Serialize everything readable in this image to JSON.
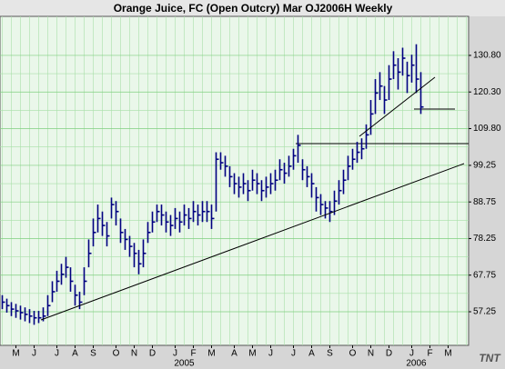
{
  "chart_data": {
    "type": "ohlc",
    "title": "Orange Juice, FC (Open Outcry) Mar OJ2006H Weekly",
    "categories": [
      null,
      null,
      null,
      "M",
      null,
      null,
      null,
      "J",
      null,
      null,
      null,
      null,
      "J",
      null,
      null,
      null,
      "A",
      null,
      null,
      null,
      "S",
      null,
      null,
      null,
      null,
      "O",
      null,
      null,
      null,
      "N",
      null,
      null,
      null,
      "D",
      null,
      null,
      null,
      null,
      "J",
      null,
      null,
      null,
      "F",
      null,
      null,
      null,
      "M",
      null,
      null,
      null,
      null,
      "A",
      null,
      null,
      null,
      "M",
      null,
      null,
      null,
      "J",
      null,
      null,
      null,
      null,
      "J",
      null,
      null,
      null,
      "A",
      null,
      null,
      null,
      "S",
      null,
      null,
      null,
      null,
      "O",
      null,
      null,
      null,
      "N",
      null,
      null,
      null,
      "D",
      null,
      null,
      null,
      null,
      "J",
      null,
      null,
      null,
      "F",
      null,
      null,
      null,
      "M",
      null,
      null,
      null,
      null
    ],
    "year_categories": [
      null,
      null,
      null,
      null,
      null,
      null,
      null,
      null,
      null,
      null,
      null,
      null,
      null,
      null,
      null,
      null,
      null,
      null,
      null,
      null,
      null,
      null,
      null,
      null,
      null,
      null,
      null,
      null,
      null,
      null,
      null,
      null,
      null,
      null,
      null,
      null,
      null,
      null,
      null,
      null,
      "2005",
      null,
      null,
      null,
      null,
      null,
      null,
      null,
      null,
      null,
      null,
      null,
      null,
      null,
      null,
      null,
      null,
      null,
      null,
      null,
      null,
      null,
      null,
      null,
      null,
      null,
      null,
      null,
      null,
      null,
      null,
      null,
      null,
      null,
      null,
      null,
      null,
      null,
      null,
      null,
      null,
      null,
      null,
      null,
      null,
      null,
      null,
      null,
      null,
      null,
      null,
      "2006",
      null,
      null,
      null,
      null,
      null,
      null,
      null,
      null,
      null,
      null,
      null
    ],
    "high": [
      62,
      61,
      60,
      59.5,
      59,
      58.5,
      58,
      57.5,
      57.5,
      58.5,
      62,
      66,
      69,
      71,
      73,
      70,
      65,
      63,
      70,
      78,
      84,
      88,
      86,
      83,
      90,
      89,
      84,
      81,
      79,
      77,
      75,
      78,
      83,
      86,
      88,
      88,
      86,
      85,
      87,
      86,
      88,
      87,
      89,
      88,
      89,
      89,
      88,
      103,
      103,
      102,
      99,
      97,
      96,
      97,
      95,
      98,
      97,
      95,
      96,
      97,
      98,
      101,
      100,
      102,
      104,
      108,
      101,
      99,
      97,
      93,
      91,
      89,
      89,
      92,
      95,
      98,
      102,
      104,
      106,
      107,
      111,
      118,
      124,
      126,
      122,
      128,
      132,
      130,
      133,
      129,
      131,
      134,
      126,
      null,
      null,
      null,
      null,
      null,
      null,
      null,
      null,
      null,
      null
    ],
    "low": [
      58,
      57,
      56,
      55.5,
      55,
      54.5,
      54,
      53.5,
      54,
      54.5,
      56,
      60,
      63,
      65,
      67,
      63,
      59,
      58,
      62,
      70,
      76,
      80,
      79,
      76,
      84,
      82,
      77,
      75,
      73,
      70,
      68,
      70,
      77,
      80,
      83,
      82,
      80,
      79,
      81,
      80,
      82,
      81,
      83,
      82,
      83,
      83,
      81,
      86,
      98,
      96,
      93,
      91,
      90,
      91,
      89,
      92,
      91,
      89,
      90,
      91,
      92,
      95,
      94,
      96,
      98,
      100,
      95,
      93,
      90,
      86,
      85,
      84,
      83,
      85,
      88,
      91,
      95,
      98,
      100,
      101,
      104,
      108,
      114,
      118,
      114,
      118,
      124,
      121,
      125,
      120,
      123,
      120,
      114,
      null,
      null,
      null,
      null,
      null,
      null,
      null,
      null,
      null,
      null
    ],
    "close": [
      60,
      59,
      58,
      57.5,
      57,
      56.5,
      56,
      55.5,
      55.5,
      56,
      59,
      63,
      66,
      68,
      70,
      66,
      62,
      60,
      66,
      74,
      80,
      84,
      82,
      79,
      88,
      86,
      80,
      78,
      76,
      74,
      71,
      74,
      80,
      83,
      86,
      85,
      83,
      82,
      84,
      83,
      85,
      84,
      86,
      85,
      86,
      86,
      84,
      101,
      100,
      99,
      96,
      94,
      93,
      94,
      92,
      95,
      94,
      92,
      93,
      94,
      95,
      98,
      97,
      99,
      102,
      105,
      98,
      96,
      94,
      90,
      88,
      87,
      86,
      89,
      92,
      95,
      99,
      101,
      103,
      104,
      108,
      114,
      120,
      122,
      118,
      124,
      128,
      126,
      130,
      125,
      128,
      124,
      116,
      null,
      null,
      null,
      null,
      null,
      null,
      null,
      null,
      null,
      null
    ],
    "color": "#000080",
    "levels": [
      105.5,
      115.4
    ],
    "ylim": [
      47.6,
      142
    ],
    "yticks": [
      57.25,
      67.75,
      78.25,
      88.75,
      99.25,
      {
        "value": 109.8,
        "label": "109.80"
      },
      {
        "value": 120.3,
        "label": "120.30"
      },
      {
        "value": 130.8,
        "label": "130.80"
      }
    ],
    "grid": true,
    "logo": "TNT"
  }
}
